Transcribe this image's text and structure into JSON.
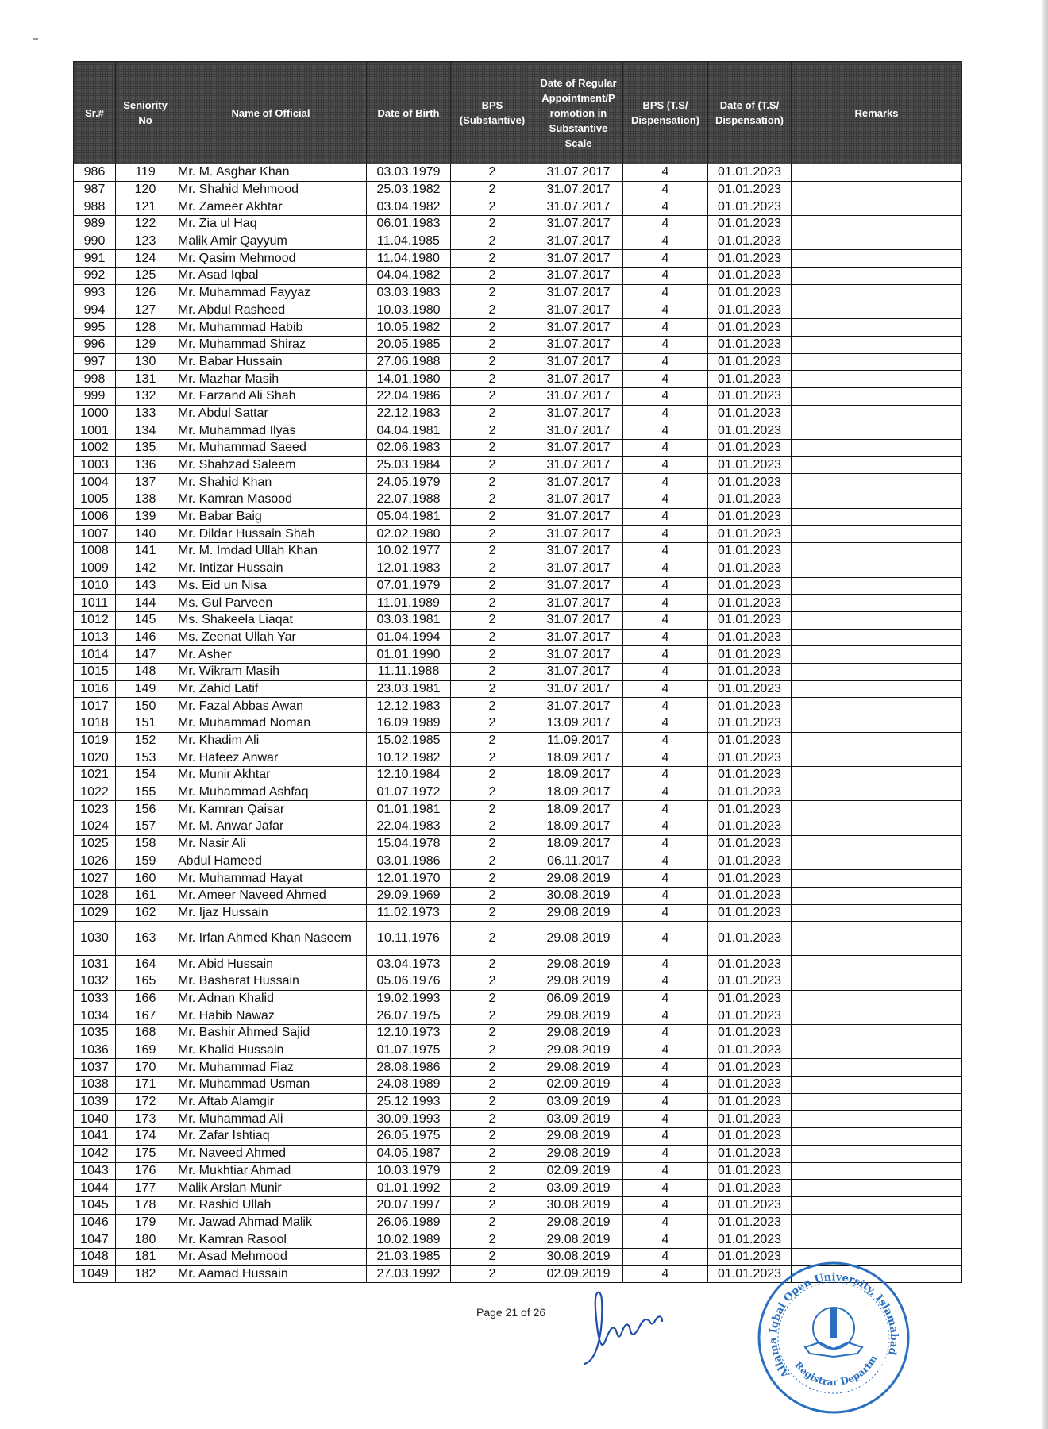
{
  "table": {
    "headers": [
      "Sr.#",
      "Seniority No",
      "Name of Official",
      "Date of Birth",
      "BPS (Substantive)",
      "Date of Regular Appointment/P romotion in Substantive Scale",
      "BPS (T.S/ Dispensation)",
      "Date of (T.S/ Dispensation)",
      "Remarks"
    ],
    "rows": [
      [
        "986",
        "119",
        "Mr. M. Asghar Khan",
        "03.03.1979",
        "2",
        "31.07.2017",
        "4",
        "01.01.2023",
        ""
      ],
      [
        "987",
        "120",
        "Mr. Shahid Mehmood",
        "25.03.1982",
        "2",
        "31.07.2017",
        "4",
        "01.01.2023",
        ""
      ],
      [
        "988",
        "121",
        "Mr. Zameer Akhtar",
        "03.04.1982",
        "2",
        "31.07.2017",
        "4",
        "01.01.2023",
        ""
      ],
      [
        "989",
        "122",
        "Mr. Zia ul Haq",
        "06.01.1983",
        "2",
        "31.07.2017",
        "4",
        "01.01.2023",
        ""
      ],
      [
        "990",
        "123",
        "Malik Amir Qayyum",
        "11.04.1985",
        "2",
        "31.07.2017",
        "4",
        "01.01.2023",
        ""
      ],
      [
        "991",
        "124",
        "Mr. Qasim Mehmood",
        "11.04.1980",
        "2",
        "31.07.2017",
        "4",
        "01.01.2023",
        ""
      ],
      [
        "992",
        "125",
        "Mr. Asad Iqbal",
        "04.04.1982",
        "2",
        "31.07.2017",
        "4",
        "01.01.2023",
        ""
      ],
      [
        "993",
        "126",
        "Mr. Muhammad Fayyaz",
        "03.03.1983",
        "2",
        "31.07.2017",
        "4",
        "01.01.2023",
        ""
      ],
      [
        "994",
        "127",
        "Mr. Abdul Rasheed",
        "10.03.1980",
        "2",
        "31.07.2017",
        "4",
        "01.01.2023",
        ""
      ],
      [
        "995",
        "128",
        "Mr. Muhammad Habib",
        "10.05.1982",
        "2",
        "31.07.2017",
        "4",
        "01.01.2023",
        ""
      ],
      [
        "996",
        "129",
        "Mr. Muhammad Shiraz",
        "20.05.1985",
        "2",
        "31.07.2017",
        "4",
        "01.01.2023",
        ""
      ],
      [
        "997",
        "130",
        "Mr. Babar Hussain",
        "27.06.1988",
        "2",
        "31.07.2017",
        "4",
        "01.01.2023",
        ""
      ],
      [
        "998",
        "131",
        "Mr. Mazhar Masih",
        "14.01.1980",
        "2",
        "31.07.2017",
        "4",
        "01.01.2023",
        ""
      ],
      [
        "999",
        "132",
        "Mr. Farzand Ali Shah",
        "22.04.1986",
        "2",
        "31.07.2017",
        "4",
        "01.01.2023",
        ""
      ],
      [
        "1000",
        "133",
        "Mr. Abdul Sattar",
        "22.12.1983",
        "2",
        "31.07.2017",
        "4",
        "01.01.2023",
        ""
      ],
      [
        "1001",
        "134",
        "Mr. Muhammad Ilyas",
        "04.04.1981",
        "2",
        "31.07.2017",
        "4",
        "01.01.2023",
        ""
      ],
      [
        "1002",
        "135",
        "Mr. Muhammad Saeed",
        "02.06.1983",
        "2",
        "31.07.2017",
        "4",
        "01.01.2023",
        ""
      ],
      [
        "1003",
        "136",
        "Mr. Shahzad Saleem",
        "25.03.1984",
        "2",
        "31.07.2017",
        "4",
        "01.01.2023",
        ""
      ],
      [
        "1004",
        "137",
        "Mr. Shahid Khan",
        "24.05.1979",
        "2",
        "31.07.2017",
        "4",
        "01.01.2023",
        ""
      ],
      [
        "1005",
        "138",
        "Mr. Kamran Masood",
        "22.07.1988",
        "2",
        "31.07.2017",
        "4",
        "01.01.2023",
        ""
      ],
      [
        "1006",
        "139",
        "Mr. Babar Baig",
        "05.04.1981",
        "2",
        "31.07.2017",
        "4",
        "01.01.2023",
        ""
      ],
      [
        "1007",
        "140",
        "Mr. Dildar Hussain Shah",
        "02.02.1980",
        "2",
        "31.07.2017",
        "4",
        "01.01.2023",
        ""
      ],
      [
        "1008",
        "141",
        "Mr. M. Imdad Ullah Khan",
        "10.02.1977",
        "2",
        "31.07.2017",
        "4",
        "01.01.2023",
        ""
      ],
      [
        "1009",
        "142",
        "Mr. Intizar Hussain",
        "12.01.1983",
        "2",
        "31.07.2017",
        "4",
        "01.01.2023",
        ""
      ],
      [
        "1010",
        "143",
        "Ms. Eid un Nisa",
        "07.01.1979",
        "2",
        "31.07.2017",
        "4",
        "01.01.2023",
        ""
      ],
      [
        "1011",
        "144",
        "Ms. Gul Parveen",
        "11.01.1989",
        "2",
        "31.07.2017",
        "4",
        "01.01.2023",
        ""
      ],
      [
        "1012",
        "145",
        "Ms. Shakeela Liaqat",
        "03.03.1981",
        "2",
        "31.07.2017",
        "4",
        "01.01.2023",
        ""
      ],
      [
        "1013",
        "146",
        "Ms. Zeenat Ullah Yar",
        "01.04.1994",
        "2",
        "31.07.2017",
        "4",
        "01.01.2023",
        ""
      ],
      [
        "1014",
        "147",
        "Mr. Asher",
        "01.01.1990",
        "2",
        "31.07.2017",
        "4",
        "01.01.2023",
        ""
      ],
      [
        "1015",
        "148",
        "Mr. Wikram Masih",
        "11.11.1988",
        "2",
        "31.07.2017",
        "4",
        "01.01.2023",
        ""
      ],
      [
        "1016",
        "149",
        "Mr. Zahid Latif",
        "23.03.1981",
        "2",
        "31.07.2017",
        "4",
        "01.01.2023",
        ""
      ],
      [
        "1017",
        "150",
        "Mr. Fazal Abbas Awan",
        "12.12.1983",
        "2",
        "31.07.2017",
        "4",
        "01.01.2023",
        ""
      ],
      [
        "1018",
        "151",
        "Mr. Muhammad Noman",
        "16.09.1989",
        "2",
        "13.09.2017",
        "4",
        "01.01.2023",
        ""
      ],
      [
        "1019",
        "152",
        "Mr. Khadim Ali",
        "15.02.1985",
        "2",
        "11.09.2017",
        "4",
        "01.01.2023",
        ""
      ],
      [
        "1020",
        "153",
        "Mr. Hafeez Anwar",
        "10.12.1982",
        "2",
        "18.09.2017",
        "4",
        "01.01.2023",
        ""
      ],
      [
        "1021",
        "154",
        "Mr. Munir Akhtar",
        "12.10.1984",
        "2",
        "18.09.2017",
        "4",
        "01.01.2023",
        ""
      ],
      [
        "1022",
        "155",
        "Mr. Muhammad Ashfaq",
        "01.07.1972",
        "2",
        "18.09.2017",
        "4",
        "01.01.2023",
        ""
      ],
      [
        "1023",
        "156",
        "Mr. Kamran Qaisar",
        "01.01.1981",
        "2",
        "18.09.2017",
        "4",
        "01.01.2023",
        ""
      ],
      [
        "1024",
        "157",
        "Mr. M. Anwar Jafar",
        "22.04.1983",
        "2",
        "18.09.2017",
        "4",
        "01.01.2023",
        ""
      ],
      [
        "1025",
        "158",
        "Mr. Nasir Ali",
        "15.04.1978",
        "2",
        "18.09.2017",
        "4",
        "01.01.2023",
        ""
      ],
      [
        "1026",
        "159",
        "Abdul Hameed",
        "03.01.1986",
        "2",
        "06.11.2017",
        "4",
        "01.01.2023",
        ""
      ],
      [
        "1027",
        "160",
        "Mr. Muhammad Hayat",
        "12.01.1970",
        "2",
        "29.08.2019",
        "4",
        "01.01.2023",
        ""
      ],
      [
        "1028",
        "161",
        "Mr. Ameer Naveed Ahmed",
        "29.09.1969",
        "2",
        "30.08.2019",
        "4",
        "01.01.2023",
        ""
      ],
      [
        "1029",
        "162",
        "Mr. Ijaz Hussain",
        "11.02.1973",
        "2",
        "29.08.2019",
        "4",
        "01.01.2023",
        ""
      ],
      [
        "1030",
        "163",
        "Mr. Irfan Ahmed Khan Naseem",
        "10.11.1976",
        "2",
        "29.08.2019",
        "4",
        "01.01.2023",
        ""
      ],
      [
        "1031",
        "164",
        "Mr. Abid Hussain",
        "03.04.1973",
        "2",
        "29.08.2019",
        "4",
        "01.01.2023",
        ""
      ],
      [
        "1032",
        "165",
        "Mr. Basharat Hussain",
        "05.06.1976",
        "2",
        "29.08.2019",
        "4",
        "01.01.2023",
        ""
      ],
      [
        "1033",
        "166",
        "Mr. Adnan Khalid",
        "19.02.1993",
        "2",
        "06.09.2019",
        "4",
        "01.01.2023",
        ""
      ],
      [
        "1034",
        "167",
        "Mr. Habib Nawaz",
        "26.07.1975",
        "2",
        "29.08.2019",
        "4",
        "01.01.2023",
        ""
      ],
      [
        "1035",
        "168",
        "Mr. Bashir Ahmed Sajid",
        "12.10.1973",
        "2",
        "29.08.2019",
        "4",
        "01.01.2023",
        ""
      ],
      [
        "1036",
        "169",
        "Mr. Khalid Hussain",
        "01.07.1975",
        "2",
        "29.08.2019",
        "4",
        "01.01.2023",
        ""
      ],
      [
        "1037",
        "170",
        "Mr. Muhammad Fiaz",
        "28.08.1986",
        "2",
        "29.08.2019",
        "4",
        "01.01.2023",
        ""
      ],
      [
        "1038",
        "171",
        "Mr. Muhammad Usman",
        "24.08.1989",
        "2",
        "02.09.2019",
        "4",
        "01.01.2023",
        ""
      ],
      [
        "1039",
        "172",
        "Mr. Aftab Alamgir",
        "25.12.1993",
        "2",
        "03.09.2019",
        "4",
        "01.01.2023",
        ""
      ],
      [
        "1040",
        "173",
        "Mr. Muhammad Ali",
        "30.09.1993",
        "2",
        "03.09.2019",
        "4",
        "01.01.2023",
        ""
      ],
      [
        "1041",
        "174",
        "Mr. Zafar Ishtiaq",
        "26.05.1975",
        "2",
        "29.08.2019",
        "4",
        "01.01.2023",
        ""
      ],
      [
        "1042",
        "175",
        "Mr. Naveed Ahmed",
        "04.05.1987",
        "2",
        "29.08.2019",
        "4",
        "01.01.2023",
        ""
      ],
      [
        "1043",
        "176",
        "Mr. Mukhtiar Ahmad",
        "10.03.1979",
        "2",
        "02.09.2019",
        "4",
        "01.01.2023",
        ""
      ],
      [
        "1044",
        "177",
        "Malik Arslan Munir",
        "01.01.1992",
        "2",
        "03.09.2019",
        "4",
        "01.01.2023",
        ""
      ],
      [
        "1045",
        "178",
        "Mr. Rashid Ullah",
        "20.07.1997",
        "2",
        "30.08.2019",
        "4",
        "01.01.2023",
        ""
      ],
      [
        "1046",
        "179",
        "Mr. Jawad Ahmad Malik",
        "26.06.1989",
        "2",
        "29.08.2019",
        "4",
        "01.01.2023",
        ""
      ],
      [
        "1047",
        "180",
        "Mr. Kamran Rasool",
        "10.02.1989",
        "2",
        "29.08.2019",
        "4",
        "01.01.2023",
        ""
      ],
      [
        "1048",
        "181",
        "Mr. Asad Mehmood",
        "21.03.1985",
        "2",
        "30.08.2019",
        "4",
        "01.01.2023",
        ""
      ],
      [
        "1049",
        "182",
        "Mr. Aamad Hussain",
        "27.03.1992",
        "2",
        "02.09.2019",
        "4",
        "01.01.2023",
        ""
      ]
    ]
  },
  "footer": {
    "page_label": "Page 21 of 26"
  },
  "stamp": {
    "outer_text": "Allama Iqbal Open University, Islamabad",
    "bottom_text": "Registrar Department",
    "color": "#2a6fc0"
  },
  "signature": {
    "color": "#1f4fa8"
  },
  "colors": {
    "header_bg": "#3b3b3b",
    "header_text": "#ffffff",
    "border": "#111111"
  }
}
